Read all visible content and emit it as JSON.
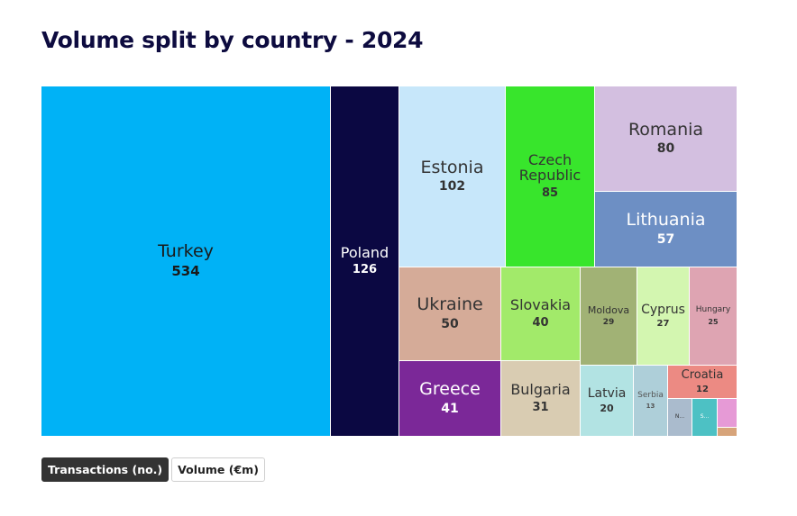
{
  "page": {
    "title": "Volume split by country - 2024"
  },
  "toggle": {
    "transactions_label": "Transactions (no.)",
    "volume_label": "Volume (€m)",
    "active": "transactions"
  },
  "chart_data": {
    "type": "treemap",
    "title": "Volume split by country - 2024",
    "items": [
      {
        "name": "Turkey",
        "value": 534,
        "color": "#00b2f6"
      },
      {
        "name": "Poland",
        "value": 126,
        "color": "#0b0842"
      },
      {
        "name": "Estonia",
        "value": 102,
        "color": "#c7e7fa"
      },
      {
        "name": "Czech Republic",
        "value": 85,
        "color": "#38e52c"
      },
      {
        "name": "Romania",
        "value": 80,
        "color": "#d3bfe0"
      },
      {
        "name": "Lithuania",
        "value": 57,
        "color": "#6d8fc4"
      },
      {
        "name": "Ukraine",
        "value": 50,
        "color": "#d5ab98"
      },
      {
        "name": "Slovakia",
        "value": 40,
        "color": "#a2ea6a"
      },
      {
        "name": "Moldova",
        "value": 29,
        "color": "#a1b275"
      },
      {
        "name": "Cyprus",
        "value": 27,
        "color": "#d3f6b0"
      },
      {
        "name": "Hungary",
        "value": 25,
        "color": "#dea4b2"
      },
      {
        "name": "Greece",
        "value": 41,
        "color": "#7b2898"
      },
      {
        "name": "Bulgaria",
        "value": 31,
        "color": "#d9ccb2"
      },
      {
        "name": "Latvia",
        "value": 20,
        "color": "#b2e3e3"
      },
      {
        "name": "Serbia",
        "value": 13,
        "color": "#aecfd9"
      },
      {
        "name": "Croatia",
        "value": 12,
        "color": "#ec8a83"
      },
      {
        "name": "N...",
        "value": null,
        "color": "#aabbcd"
      },
      {
        "name": "S...",
        "value": null,
        "color": "#4dc1c4"
      },
      {
        "name": "",
        "value": null,
        "color": "#e69ad6"
      },
      {
        "name": "",
        "value": null,
        "color": "#d7a47a"
      }
    ]
  }
}
